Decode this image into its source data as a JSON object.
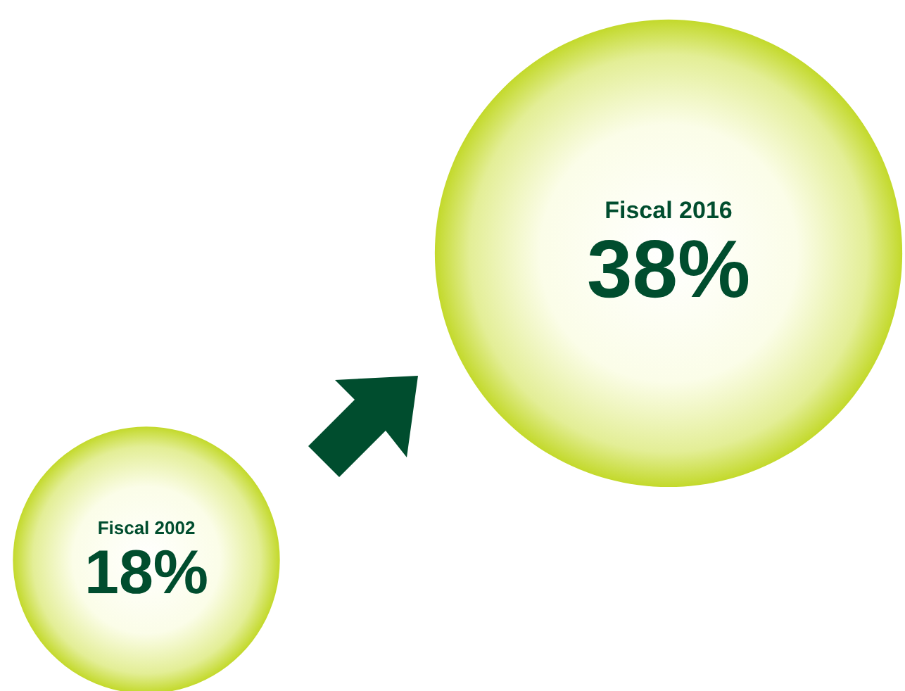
{
  "chart_data": {
    "type": "other",
    "categories": [
      "Fiscal 2002",
      "Fiscal 2016"
    ],
    "values": [
      18,
      38
    ],
    "value_labels": [
      "18%",
      "38%"
    ],
    "colors": [
      "#c3d92b",
      "#c3d92b"
    ]
  }
}
